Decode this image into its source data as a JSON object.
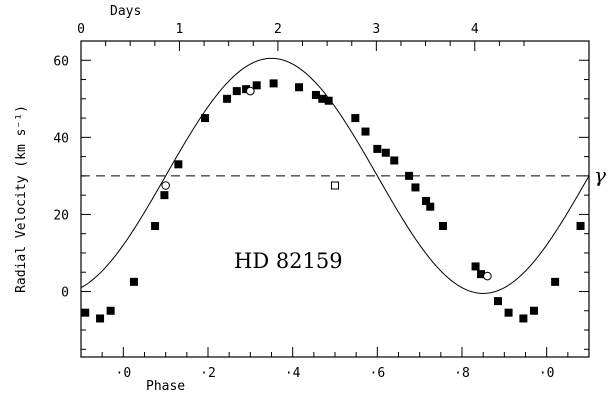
{
  "chart_data": {
    "type": "scatter",
    "title": "",
    "annotation": "HD 82159",
    "gamma_label": "γ",
    "xlabel": "Phase",
    "ylabel": "Radial Velocity (km s⁻¹)",
    "top_xlabel": "Days",
    "x_range": [
      -0.1,
      1.1
    ],
    "ylim": [
      -17,
      65
    ],
    "x_ticks": [
      0.0,
      0.2,
      0.4,
      0.6,
      0.8,
      1.0
    ],
    "x_tick_labels": [
      "·0",
      "·2",
      "·4",
      "·6",
      "·8",
      "·0"
    ],
    "y_ticks": [
      0,
      20,
      40,
      60
    ],
    "y_tick_labels": [
      "0",
      "20",
      "40",
      "60"
    ],
    "top_ticks": [
      0,
      1,
      2,
      3,
      4
    ],
    "top_tick_labels": [
      "0",
      "1",
      "2",
      "3",
      "4"
    ],
    "period_days": 4.3,
    "phase_zero_day_offset": 0.43,
    "systemic_velocity": 30,
    "orbit_fit": {
      "gamma": 30,
      "K": 30.5,
      "phase_of_max": 0.35
    },
    "grid": false,
    "legend": "none",
    "series": [
      {
        "marker": "filled-square",
        "x": [
          -0.09,
          -0.055,
          -0.03,
          0.025,
          0.075,
          0.097,
          0.13,
          0.193,
          0.245,
          0.268,
          0.29,
          0.315,
          0.355,
          0.415,
          0.455,
          0.47,
          0.485,
          0.548,
          0.572,
          0.6,
          0.62,
          0.64,
          0.675,
          0.69,
          0.715,
          0.725,
          0.755,
          0.832,
          0.845,
          0.885,
          0.91,
          0.945,
          0.97,
          1.02,
          1.08
        ],
        "y": [
          -5.5,
          -7,
          -5,
          2.5,
          17,
          25,
          33,
          45,
          50,
          52,
          52.5,
          53.5,
          54,
          53,
          51,
          50,
          49.5,
          45,
          41.5,
          37,
          36,
          34,
          30,
          27,
          23.5,
          22,
          17,
          6.5,
          4.5,
          -2.5,
          -5.5,
          -7,
          -5,
          2.5,
          17
        ]
      },
      {
        "marker": "open-circle",
        "x": [
          0.1,
          0.3,
          0.86
        ],
        "y": [
          27.5,
          52,
          4
        ]
      },
      {
        "marker": "open-square",
        "x": [
          0.5
        ],
        "y": [
          27.5
        ]
      }
    ]
  }
}
